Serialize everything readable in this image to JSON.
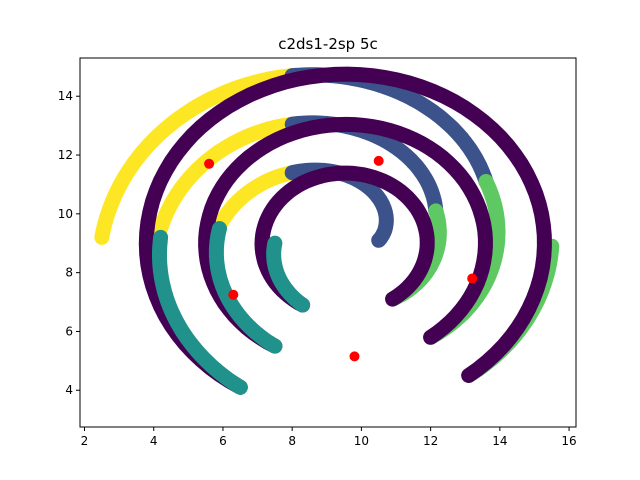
{
  "chart_data": {
    "type": "scatter",
    "title": "c2ds1-2sp 5c",
    "xlabel": "",
    "ylabel": "",
    "xlim": [
      1.87,
      16.2
    ],
    "ylim": [
      2.75,
      15.3
    ],
    "xticks": [
      2,
      4,
      6,
      8,
      10,
      12,
      14,
      16
    ],
    "yticks": [
      4,
      6,
      8,
      10,
      12,
      14
    ],
    "grid": false,
    "spiral_centers": [
      [
        9.55,
        9.0
      ],
      [
        9.55,
        9.0
      ]
    ],
    "clusters": [
      {
        "color": "#fde725",
        "arcs": [
          {
            "from": [
              8.0,
              14.7
            ],
            "through": [
              2.5,
              9.2
            ]
          },
          {
            "from": [
              8.0,
              13.05
            ],
            "through": [
              4.2,
              9.5
            ]
          },
          {
            "from": [
              8.0,
              11.4
            ],
            "through": [
              5.9,
              9.6
            ]
          }
        ]
      },
      {
        "color": "#3b528b",
        "arcs": [
          {
            "from": [
              8.0,
              14.7
            ],
            "to": [
              13.6,
              11.1
            ]
          },
          {
            "from": [
              8.0,
              13.05
            ],
            "to": [
              12.15,
              10.1
            ]
          },
          {
            "from": [
              8.0,
              11.4
            ],
            "to": [
              10.5,
              9.1
            ]
          }
        ]
      },
      {
        "color": "#5ec962",
        "arcs": [
          {
            "from": [
              13.6,
              11.1
            ],
            "to": [
              12.0,
              5.8
            ]
          },
          {
            "from": [
              12.15,
              10.1
            ],
            "to": [
              10.9,
              7.1
            ]
          },
          {
            "from": [
              13.1,
              4.5
            ],
            "to": [
              15.5,
              8.9
            ]
          }
        ]
      },
      {
        "color": "#440154",
        "arcs": [
          {
            "from": [
              6.5,
              4.1
            ],
            "to": [
              13.1,
              4.5
            ]
          },
          {
            "from": [
              7.5,
              5.5
            ],
            "to": [
              12.0,
              5.8
            ]
          },
          {
            "from": [
              8.3,
              6.9
            ],
            "to": [
              10.9,
              7.1
            ]
          }
        ]
      },
      {
        "color": "#21918c",
        "arcs": [
          {
            "from": [
              4.2,
              9.2
            ],
            "to": [
              6.5,
              4.1
            ]
          },
          {
            "from": [
              5.9,
              9.5
            ],
            "to": [
              7.5,
              5.5
            ]
          },
          {
            "from": [
              7.5,
              9.0
            ],
            "to": [
              8.3,
              6.9
            ]
          }
        ]
      }
    ],
    "centroids": {
      "color": "#ff0000",
      "points": [
        [
          5.6,
          11.7
        ],
        [
          10.5,
          11.8
        ],
        [
          13.2,
          7.8
        ],
        [
          6.3,
          7.25
        ],
        [
          9.8,
          5.15
        ]
      ]
    }
  }
}
